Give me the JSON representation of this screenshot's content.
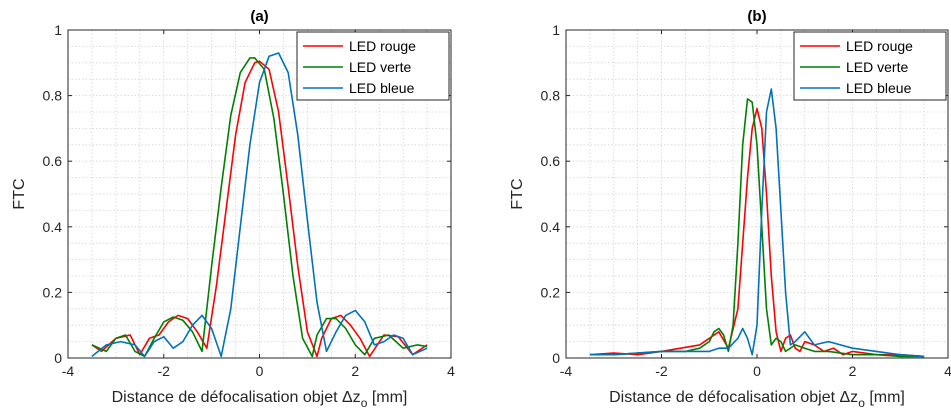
{
  "chart_data": [
    {
      "type": "line",
      "title": "(a)",
      "xlabel": "Distance de défocalisation objet",
      "xlabel_symbol": "Δz",
      "xlabel_sub": "o",
      "xlabel_unit": "[mm]",
      "ylabel": "FTC",
      "xlim": [
        -4,
        4
      ],
      "ylim": [
        0,
        1
      ],
      "xticks": [
        -4,
        -2,
        0,
        2,
        4
      ],
      "yticks": [
        0,
        0.2,
        0.4,
        0.6,
        0.8,
        1
      ],
      "grid": true,
      "legend_position": "top-right",
      "series": [
        {
          "name": "LED rouge",
          "color": "#ff0000",
          "x": [
            -3.5,
            -3.3,
            -3.0,
            -2.7,
            -2.5,
            -2.3,
            -2.1,
            -1.9,
            -1.7,
            -1.5,
            -1.3,
            -1.1,
            -0.9,
            -0.7,
            -0.5,
            -0.3,
            -0.1,
            0.0,
            0.2,
            0.4,
            0.6,
            0.8,
            1.0,
            1.2,
            1.3,
            1.5,
            1.7,
            1.9,
            2.1,
            2.3,
            2.6,
            2.9,
            3.2,
            3.5
          ],
          "y": [
            0.04,
            0.02,
            0.06,
            0.07,
            0.01,
            0.06,
            0.07,
            0.11,
            0.13,
            0.12,
            0.08,
            0.03,
            0.22,
            0.45,
            0.68,
            0.84,
            0.9,
            0.905,
            0.88,
            0.75,
            0.52,
            0.28,
            0.08,
            0.005,
            0.06,
            0.12,
            0.13,
            0.1,
            0.06,
            0.005,
            0.07,
            0.065,
            0.01,
            0.04
          ]
        },
        {
          "name": "LED verte",
          "color": "#008000",
          "x": [
            -3.5,
            -3.2,
            -3.0,
            -2.8,
            -2.6,
            -2.4,
            -2.2,
            -2.0,
            -1.8,
            -1.6,
            -1.4,
            -1.2,
            -1.0,
            -0.8,
            -0.6,
            -0.4,
            -0.2,
            -0.1,
            0.1,
            0.3,
            0.5,
            0.7,
            0.9,
            1.1,
            1.2,
            1.4,
            1.6,
            1.8,
            2.0,
            2.2,
            2.4,
            2.7,
            3.0,
            3.3,
            3.5
          ],
          "y": [
            0.04,
            0.02,
            0.06,
            0.07,
            0.02,
            0.005,
            0.06,
            0.11,
            0.125,
            0.115,
            0.08,
            0.02,
            0.28,
            0.52,
            0.74,
            0.87,
            0.915,
            0.915,
            0.88,
            0.73,
            0.5,
            0.25,
            0.06,
            0.005,
            0.07,
            0.12,
            0.12,
            0.09,
            0.04,
            0.01,
            0.06,
            0.07,
            0.03,
            0.04,
            0.035
          ]
        },
        {
          "name": "LED bleue",
          "color": "#0072bd",
          "x": [
            -3.5,
            -3.2,
            -2.9,
            -2.6,
            -2.4,
            -2.2,
            -2.0,
            -1.8,
            -1.6,
            -1.4,
            -1.2,
            -1.0,
            -0.8,
            -0.6,
            -0.4,
            -0.2,
            0.0,
            0.2,
            0.4,
            0.6,
            0.8,
            1.0,
            1.2,
            1.4,
            1.6,
            1.8,
            2.0,
            2.2,
            2.4,
            2.6,
            2.8,
            3.0,
            3.2,
            3.5
          ],
          "y": [
            0.005,
            0.04,
            0.05,
            0.04,
            0.005,
            0.05,
            0.065,
            0.03,
            0.05,
            0.1,
            0.13,
            0.09,
            0.005,
            0.15,
            0.4,
            0.65,
            0.84,
            0.92,
            0.93,
            0.87,
            0.68,
            0.42,
            0.17,
            0.02,
            0.08,
            0.13,
            0.145,
            0.11,
            0.04,
            0.05,
            0.07,
            0.06,
            0.01,
            0.03
          ]
        }
      ]
    },
    {
      "type": "line",
      "title": "(b)",
      "xlabel": "Distance de défocalisation objet",
      "xlabel_symbol": "Δz",
      "xlabel_sub": "o",
      "xlabel_unit": "[mm]",
      "ylabel": "FTC",
      "xlim": [
        -4,
        4
      ],
      "ylim": [
        0,
        1
      ],
      "xticks": [
        -4,
        -2,
        0,
        2,
        4
      ],
      "yticks": [
        0,
        0.2,
        0.4,
        0.6,
        0.8,
        1
      ],
      "grid": true,
      "legend_position": "top-right",
      "series": [
        {
          "name": "LED rouge",
          "color": "#ff0000",
          "x": [
            -3.5,
            -3.0,
            -2.5,
            -2.0,
            -1.6,
            -1.2,
            -1.0,
            -0.8,
            -0.6,
            -0.4,
            -0.2,
            -0.1,
            0.0,
            0.1,
            0.2,
            0.3,
            0.4,
            0.5,
            0.6,
            0.7,
            0.8,
            0.9,
            1.0,
            1.2,
            1.4,
            1.6,
            1.8,
            2.0,
            2.5,
            3.0,
            3.5
          ],
          "y": [
            0.01,
            0.015,
            0.01,
            0.02,
            0.03,
            0.04,
            0.06,
            0.08,
            0.03,
            0.15,
            0.55,
            0.7,
            0.76,
            0.7,
            0.5,
            0.25,
            0.08,
            0.02,
            0.06,
            0.07,
            0.03,
            0.02,
            0.05,
            0.04,
            0.02,
            0.03,
            0.01,
            0.02,
            0.01,
            0.01,
            0.005
          ]
        },
        {
          "name": "LED verte",
          "color": "#008000",
          "x": [
            -3.5,
            -3.0,
            -2.5,
            -2.0,
            -1.5,
            -1.2,
            -1.0,
            -0.9,
            -0.8,
            -0.7,
            -0.6,
            -0.5,
            -0.4,
            -0.3,
            -0.2,
            -0.1,
            0.0,
            0.1,
            0.2,
            0.3,
            0.4,
            0.5,
            0.6,
            0.8,
            1.0,
            1.2,
            1.5,
            2.0,
            2.5,
            3.0,
            3.5
          ],
          "y": [
            0.01,
            0.01,
            0.015,
            0.02,
            0.02,
            0.03,
            0.05,
            0.08,
            0.09,
            0.07,
            0.02,
            0.1,
            0.35,
            0.65,
            0.79,
            0.78,
            0.65,
            0.4,
            0.15,
            0.04,
            0.06,
            0.05,
            0.02,
            0.04,
            0.03,
            0.02,
            0.02,
            0.01,
            0.01,
            0.005,
            0.005
          ]
        },
        {
          "name": "LED bleue",
          "color": "#0072bd",
          "x": [
            -3.5,
            -3.0,
            -2.5,
            -2.0,
            -1.5,
            -1.0,
            -0.8,
            -0.6,
            -0.4,
            -0.3,
            -0.2,
            -0.1,
            0.0,
            0.1,
            0.2,
            0.3,
            0.4,
            0.5,
            0.6,
            0.7,
            0.8,
            1.0,
            1.2,
            1.5,
            2.0,
            2.5,
            3.0,
            3.5
          ],
          "y": [
            0.01,
            0.01,
            0.015,
            0.02,
            0.02,
            0.02,
            0.03,
            0.03,
            0.06,
            0.09,
            0.06,
            0.01,
            0.1,
            0.45,
            0.75,
            0.82,
            0.7,
            0.45,
            0.2,
            0.04,
            0.05,
            0.08,
            0.04,
            0.05,
            0.03,
            0.02,
            0.01,
            0.005
          ]
        }
      ]
    }
  ]
}
